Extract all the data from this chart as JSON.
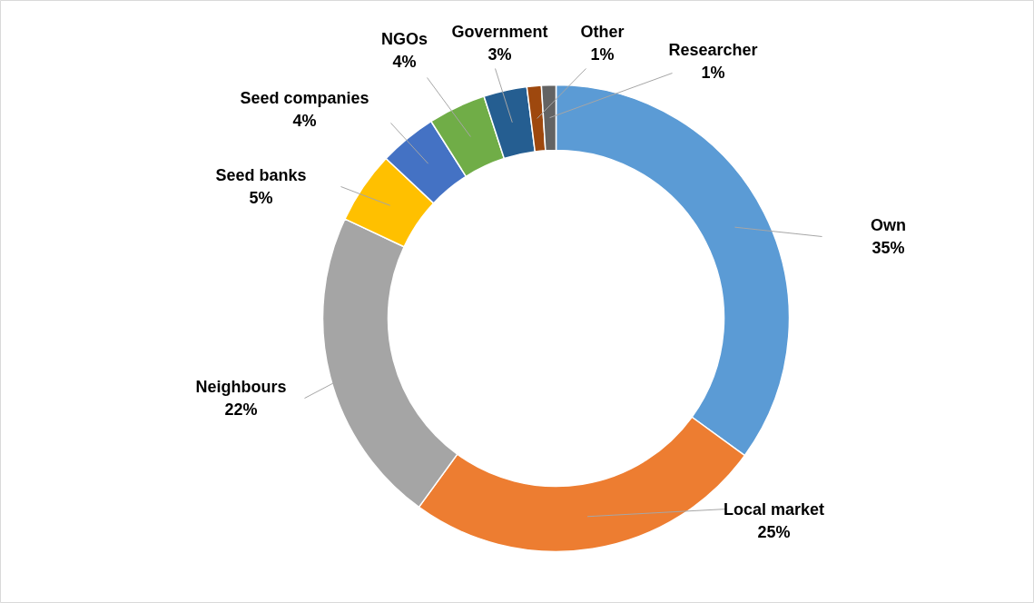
{
  "chart_data": {
    "type": "donut",
    "categories": [
      "Own",
      "Local market",
      "Neighbours",
      "Seed banks",
      "Seed companies",
      "NGOs",
      "Government",
      "Other",
      "Researcher"
    ],
    "values": [
      35,
      25,
      22,
      5,
      4,
      4,
      3,
      1,
      1
    ],
    "value_labels": [
      "35%",
      "25%",
      "22%",
      "5%",
      "4%",
      "4%",
      "3%",
      "1%",
      "1%"
    ],
    "colors": [
      "#5b9bd5",
      "#ed7d31",
      "#a5a5a5",
      "#ffc000",
      "#4472c4",
      "#70ad47",
      "#255e91",
      "#9e480e",
      "#636363"
    ]
  }
}
